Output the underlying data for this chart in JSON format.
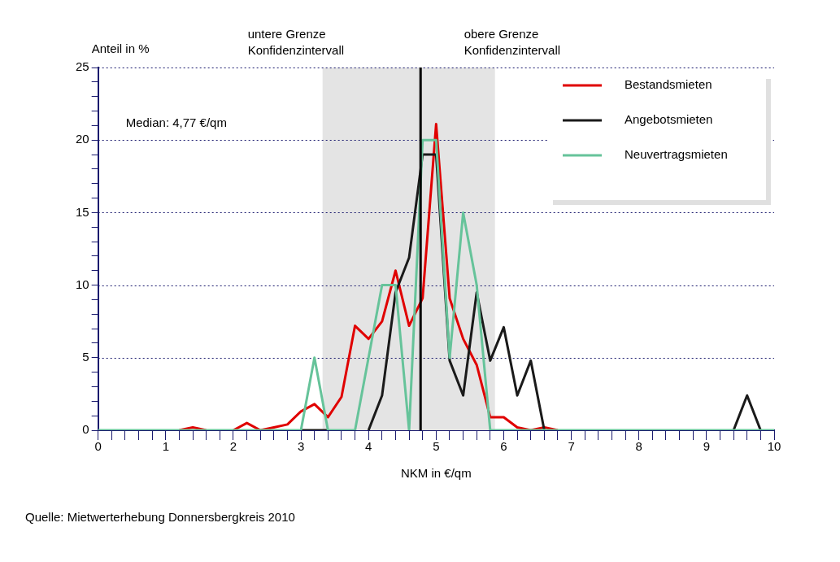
{
  "chart_data": {
    "type": "line",
    "xlabel": "NKM in €/qm",
    "ylabel": "Anteil in %",
    "x": [
      0,
      0.2,
      0.4,
      0.6,
      0.8,
      1,
      1.2,
      1.4,
      1.6,
      1.8,
      2,
      2.2,
      2.4,
      2.6,
      2.8,
      3,
      3.2,
      3.4,
      3.6,
      3.8,
      4,
      4.2,
      4.4,
      4.6,
      4.8,
      5,
      5.2,
      5.4,
      5.6,
      5.8,
      6,
      6.2,
      6.4,
      6.6,
      6.8,
      7,
      7.2,
      7.4,
      7.6,
      7.8,
      8,
      8.2,
      8.4,
      8.6,
      8.8,
      9,
      9.2,
      9.4,
      9.6,
      9.8,
      10
    ],
    "series": [
      {
        "name": "Bestandsmieten",
        "color": "#e00000",
        "values": [
          null,
          null,
          null,
          null,
          null,
          null,
          0,
          0.2,
          0,
          null,
          0,
          0.5,
          0,
          0.2,
          0.4,
          1.3,
          1.8,
          0.9,
          2.3,
          7.2,
          6.3,
          7.5,
          11,
          7.2,
          9.1,
          21.1,
          9.1,
          6.3,
          4.5,
          0.9,
          0.9,
          0.2,
          0,
          0.2,
          0,
          null,
          null,
          null,
          null,
          null,
          null,
          null,
          null,
          null,
          null,
          null,
          null,
          null,
          null,
          null,
          null
        ]
      },
      {
        "name": "Angebotsmieten",
        "color": "#1a1a1a",
        "values": [
          null,
          null,
          null,
          null,
          null,
          null,
          null,
          null,
          null,
          null,
          null,
          null,
          null,
          null,
          null,
          0,
          0,
          0,
          null,
          null,
          0,
          2.4,
          9.5,
          11.9,
          19,
          19,
          4.8,
          2.4,
          9.5,
          4.8,
          7.1,
          2.4,
          4.8,
          0,
          null,
          null,
          null,
          null,
          null,
          null,
          null,
          null,
          null,
          null,
          null,
          null,
          null,
          0,
          2.4,
          0,
          null
        ]
      },
      {
        "name": "Neuvertragsmieten",
        "color": "#66c39a",
        "values": [
          0,
          0,
          0,
          0,
          0,
          0,
          0,
          0,
          0,
          0,
          0,
          0,
          0,
          0,
          0,
          0,
          5,
          0,
          0,
          0,
          5,
          10,
          10,
          0,
          20,
          20,
          5,
          15,
          10,
          0,
          0,
          0,
          0,
          0,
          0,
          0,
          0,
          0,
          0,
          0,
          0,
          0,
          0,
          0,
          0,
          0,
          0,
          0,
          0,
          0,
          0
        ]
      }
    ],
    "xlim": [
      0,
      10
    ],
    "ylim": [
      0,
      25
    ],
    "xticks": [
      0,
      {
        "value": 0.2,
        "label": null
      },
      {
        "value": 0.4,
        "label": null
      },
      {
        "value": 0.6,
        "label": null
      },
      {
        "value": 0.8,
        "label": null
      },
      1,
      {
        "value": 1.2,
        "label": null
      },
      {
        "value": 1.4,
        "label": null
      },
      {
        "value": 1.6,
        "label": null
      },
      {
        "value": 1.8,
        "label": null
      },
      2,
      {
        "value": 2.2,
        "label": null
      },
      {
        "value": 2.4,
        "label": null
      },
      {
        "value": 2.6,
        "label": null
      },
      {
        "value": 2.8,
        "label": null
      },
      3,
      {
        "value": 3.2,
        "label": null
      },
      {
        "value": 3.4,
        "label": null
      },
      {
        "value": 3.6,
        "label": null
      },
      {
        "value": 3.8,
        "label": null
      },
      4,
      {
        "value": 4.2,
        "label": null
      },
      {
        "value": 4.4,
        "label": null
      },
      {
        "value": 4.6,
        "label": null
      },
      {
        "value": 4.8,
        "label": null
      },
      5,
      {
        "value": 5.2,
        "label": null
      },
      {
        "value": 5.4,
        "label": null
      },
      {
        "value": 5.6,
        "label": null
      },
      {
        "value": 5.8,
        "label": null
      },
      6,
      {
        "value": 6.2,
        "label": null
      },
      {
        "value": 6.4,
        "label": null
      },
      {
        "value": 6.6,
        "label": null
      },
      {
        "value": 6.8,
        "label": null
      },
      7,
      {
        "value": 7.2,
        "label": null
      },
      {
        "value": 7.4,
        "label": null
      },
      {
        "value": 7.6,
        "label": null
      },
      {
        "value": 7.8,
        "label": null
      },
      8,
      {
        "value": 8.2,
        "label": null
      },
      {
        "value": 8.4,
        "label": null
      },
      {
        "value": 8.6,
        "label": null
      },
      {
        "value": 8.8,
        "label": null
      },
      9,
      {
        "value": 9.2,
        "label": null
      },
      {
        "value": 9.4,
        "label": null
      },
      {
        "value": 9.6,
        "label": null
      },
      {
        "value": 9.8,
        "label": null
      },
      10
    ],
    "yticks": [
      0,
      {
        "value": 1,
        "label": null
      },
      {
        "value": 2,
        "label": null
      },
      {
        "value": 3,
        "label": null
      },
      {
        "value": 4,
        "label": null
      },
      5,
      {
        "value": 6,
        "label": null
      },
      {
        "value": 7,
        "label": null
      },
      {
        "value": 8,
        "label": null
      },
      {
        "value": 9,
        "label": null
      },
      10,
      {
        "value": 11,
        "label": null
      },
      {
        "value": 12,
        "label": null
      },
      {
        "value": 13,
        "label": null
      },
      {
        "value": 14,
        "label": null
      },
      15,
      {
        "value": 16,
        "label": null
      },
      {
        "value": 17,
        "label": null
      },
      {
        "value": 18,
        "label": null
      },
      {
        "value": 19,
        "label": null
      },
      20,
      {
        "value": 21,
        "label": null
      },
      {
        "value": 22,
        "label": null
      },
      {
        "value": 23,
        "label": null
      },
      {
        "value": 24,
        "label": null
      },
      25
    ],
    "grid": "y",
    "legend": "top right",
    "marker": "none",
    "line_style": "solid",
    "ref_lines": [
      {
        "axis": "x",
        "value": 4.77,
        "color": "#000000"
      }
    ],
    "bands": [
      {
        "axis": "x",
        "from": 3.32,
        "to": 5.87,
        "color": "#e4e4e4"
      }
    ],
    "annotations": [
      "Median: 4,77 €/qm",
      {
        "text": "untere Grenze\nKonfidenzintervall",
        "x": 3.32,
        "y": 25
      },
      {
        "text": "obere Grenze\nKonfidenzintervall",
        "x": 5.87,
        "y": 25
      },
      "Quelle: Mietwerterhebung Donnersbergkreis 2010"
    ]
  }
}
